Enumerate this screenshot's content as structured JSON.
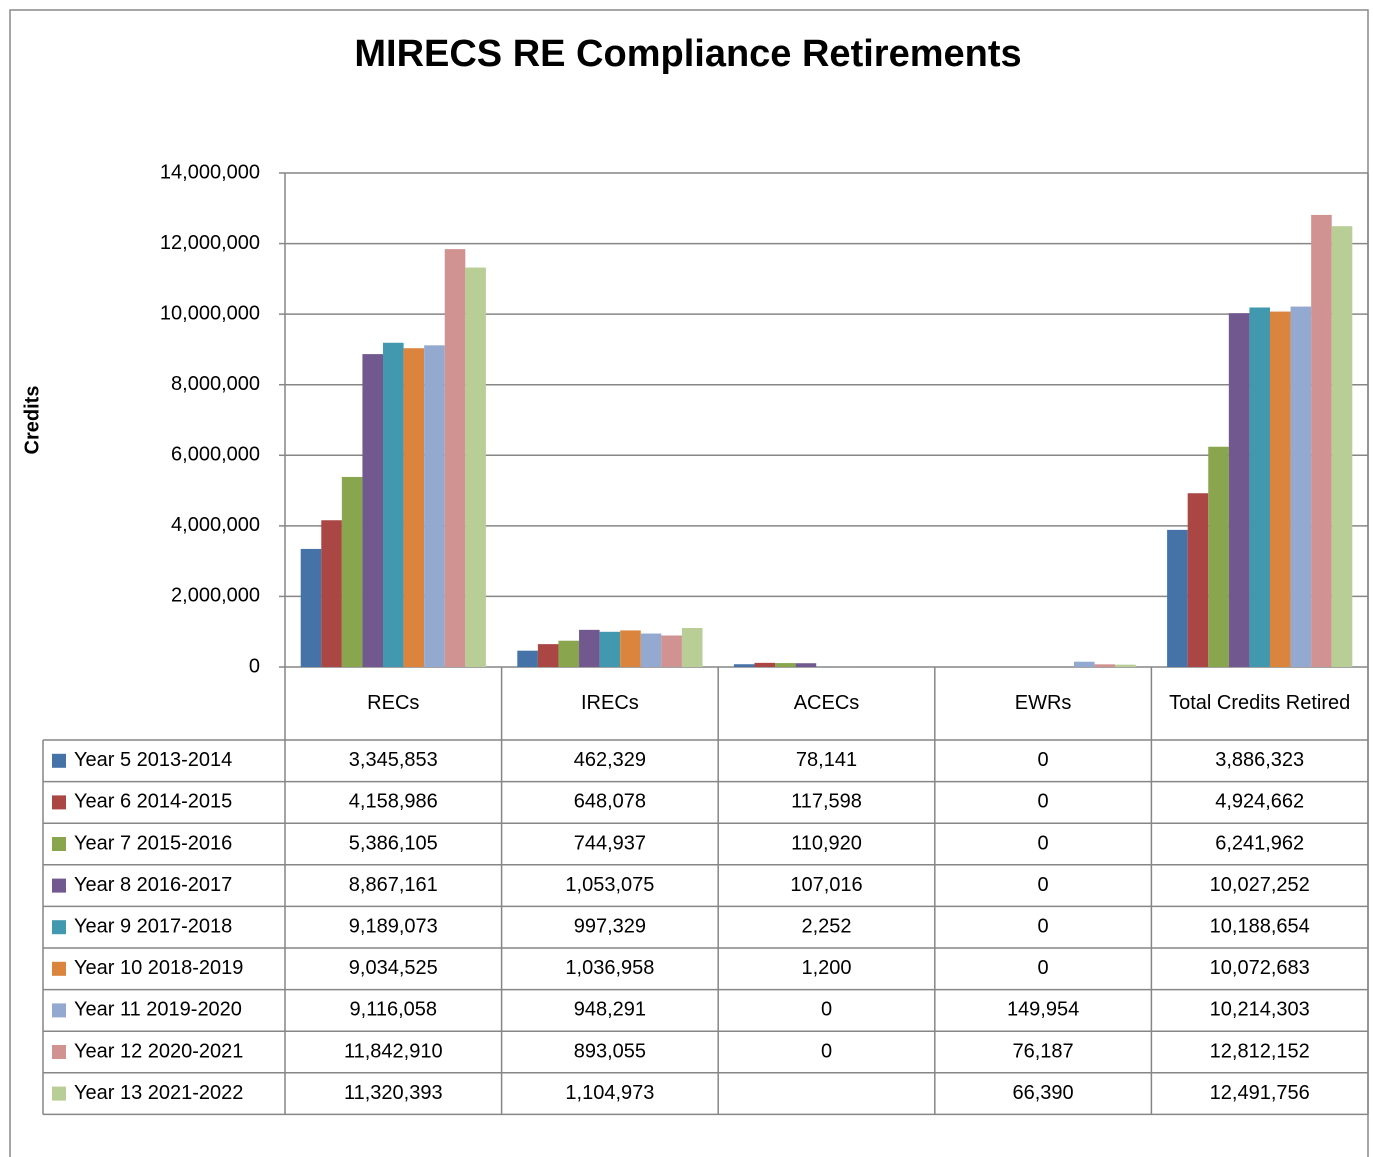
{
  "chart_data": {
    "type": "bar",
    "title": "MIRECS RE Compliance Retirements",
    "y_label": "Credits",
    "categories": [
      "RECs",
      "IRECs",
      "ACECs",
      "EWRs",
      "Total Credits Retired"
    ],
    "ylim": [
      0,
      14000000
    ],
    "yticks": [
      0,
      {
        "value": 2000000,
        "label": "2,000,000"
      },
      {
        "value": 4000000,
        "label": "4,000,000"
      },
      {
        "value": 6000000,
        "label": "6,000,000"
      },
      {
        "value": 8000000,
        "label": "8,000,000"
      },
      {
        "value": 10000000,
        "label": "10,000,000"
      },
      {
        "value": 12000000,
        "label": "12,000,000"
      },
      {
        "value": 14000000,
        "label": "14,000,000"
      }
    ],
    "grid": true,
    "series": [
      {
        "name": "Year 5 2013-2014",
        "color": "#4572A7",
        "values": [
          3345853,
          462329,
          78141,
          0,
          3886323
        ],
        "value_labels": [
          "3,345,853",
          "462,329",
          "78,141",
          "0",
          "3,886,323"
        ]
      },
      {
        "name": "Year 6 2014-2015",
        "color": "#AA4643",
        "values": [
          4158986,
          648078,
          117598,
          0,
          4924662
        ],
        "value_labels": [
          "4,158,986",
          "648,078",
          "117,598",
          "0",
          "4,924,662"
        ]
      },
      {
        "name": "Year 7 2015-2016",
        "color": "#89A54E",
        "values": [
          5386105,
          744937,
          110920,
          0,
          6241962
        ],
        "value_labels": [
          "5,386,105",
          "744,937",
          "110,920",
          "0",
          "6,241,962"
        ]
      },
      {
        "name": "Year 8 2016-2017",
        "color": "#71588F",
        "values": [
          8867161,
          1053075,
          107016,
          0,
          10027252
        ],
        "value_labels": [
          "8,867,161",
          "1,053,075",
          "107,016",
          "0",
          "10,027,252"
        ]
      },
      {
        "name": "Year 9 2017-2018",
        "color": "#4198AF",
        "values": [
          9189073,
          997329,
          2252,
          0,
          10188654
        ],
        "value_labels": [
          "9,189,073",
          "997,329",
          "2,252",
          "0",
          "10,188,654"
        ]
      },
      {
        "name": "Year 10 2018-2019",
        "color": "#DB843D",
        "values": [
          9034525,
          1036958,
          1200,
          0,
          10072683
        ],
        "value_labels": [
          "9,034,525",
          "1,036,958",
          "1,200",
          "0",
          "10,072,683"
        ]
      },
      {
        "name": "Year 11 2019-2020",
        "color": "#93A9CF",
        "values": [
          9116058,
          948291,
          0,
          149954,
          10214303
        ],
        "value_labels": [
          "9,116,058",
          "948,291",
          "0",
          "149,954",
          "10,214,303"
        ]
      },
      {
        "name": "Year 12 2020-2021",
        "color": "#D19392",
        "values": [
          11842910,
          893055,
          0,
          76187,
          12812152
        ],
        "value_labels": [
          "11,842,910",
          "893,055",
          "0",
          "76,187",
          "12,812,152"
        ]
      },
      {
        "name": "Year 13 2021-2022",
        "color": "#B9CD96",
        "values": [
          11320393,
          1104973,
          null,
          66390,
          12491756
        ],
        "value_labels": [
          "11,320,393",
          "1,104,973",
          null,
          "66,390",
          "12,491,756"
        ]
      }
    ]
  }
}
